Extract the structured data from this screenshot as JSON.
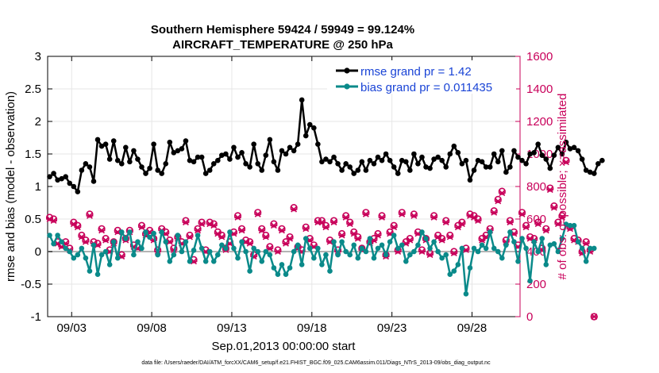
{
  "chart_data": {
    "type": "line",
    "title": "Southern Hemisphere 59424 / 59949 = 99.124%",
    "subtitle": "AIRCRAFT_TEMPERATURE @ 250 hPa",
    "xlabel": "Sep.01,2013 00:00:00 start",
    "ylabel": "rmse and bias (model - observation)",
    "ylabel_right": "# of obs: o=possible; ×=assimilated",
    "footer": "data file: /Users/raeder/DAI/ATM_forcXX/CAM6_setup/f.e21.FHIST_BGC.f09_025.CAM6assim.011/Diags_NTrS_2013-09/obs_diag_output.nc",
    "xlim": [
      1.5,
      31
    ],
    "ylim": [
      -1,
      3
    ],
    "ylim_right": [
      0,
      1600
    ],
    "xticks": [
      3,
      8,
      13,
      18,
      23,
      28
    ],
    "xtick_labels": [
      "09/03",
      "09/08",
      "09/13",
      "09/18",
      "09/23",
      "09/28"
    ],
    "yticks": [
      -1,
      -0.5,
      0,
      0.5,
      1,
      1.5,
      2,
      2.5,
      3
    ],
    "ytick_labels": [
      "-1",
      "-0.5",
      "0",
      "0.5",
      "1",
      "1.5",
      "2",
      "2.5",
      "3"
    ],
    "yticks_right": [
      0,
      200,
      400,
      600,
      800,
      1000,
      1200,
      1400,
      1600
    ],
    "ytick_labels_right": [
      "0",
      "200",
      "400",
      "600",
      "800",
      "1000",
      "1200",
      "1400",
      "1600"
    ],
    "legend_position": "top-right",
    "grid": true,
    "x_start": 1.625,
    "x_step": 0.25,
    "series": [
      {
        "name": "rmse grand pr = 1.42",
        "color": "#000000",
        "axis": "left",
        "values": [
          1.15,
          1.2,
          1.1,
          1.12,
          1.15,
          1.05,
          1.0,
          0.92,
          1.25,
          1.35,
          1.3,
          1.08,
          1.72,
          1.62,
          1.65,
          1.42,
          1.7,
          1.4,
          1.35,
          1.6,
          1.38,
          1.55,
          1.42,
          1.3,
          1.2,
          1.28,
          1.65,
          1.25,
          1.2,
          1.35,
          1.68,
          1.52,
          1.55,
          1.58,
          1.7,
          1.4,
          1.38,
          1.45,
          1.45,
          1.2,
          1.25,
          1.35,
          1.4,
          1.48,
          1.5,
          1.42,
          1.6,
          1.45,
          1.52,
          1.35,
          1.3,
          1.65,
          1.35,
          1.25,
          1.48,
          1.72,
          1.38,
          1.25,
          1.55,
          1.5,
          1.6,
          1.55,
          1.65,
          2.33,
          1.78,
          1.95,
          1.9,
          1.65,
          1.38,
          1.42,
          1.38,
          1.45,
          1.35,
          1.25,
          1.35,
          1.3,
          1.2,
          1.25,
          1.38,
          1.25,
          1.4,
          1.35,
          1.45,
          1.4,
          1.5,
          1.4,
          1.3,
          1.2,
          1.4,
          1.38,
          1.25,
          1.5,
          1.35,
          1.45,
          1.3,
          1.28,
          1.42,
          1.45,
          1.4,
          1.3,
          1.5,
          1.62,
          1.52,
          1.35,
          1.4,
          1.1,
          1.25,
          1.4,
          1.38,
          1.3,
          1.3,
          1.5,
          1.38,
          1.55,
          1.22,
          1.3,
          1.55,
          1.45,
          1.4,
          1.35,
          1.5,
          1.52,
          1.65,
          1.48,
          1.42,
          1.28,
          1.48,
          1.6,
          1.5,
          1.68,
          1.58,
          1.6,
          1.55,
          1.42,
          1.25,
          1.22,
          1.2,
          1.35,
          1.4
        ]
      },
      {
        "name": "bias grand pr = 0.011435",
        "color": "#0a8a8a",
        "axis": "left",
        "values": [
          0.25,
          0.12,
          0.25,
          0.15,
          0.05,
          0.0,
          -0.1,
          -0.05,
          0.05,
          -0.1,
          -0.3,
          0.1,
          -0.35,
          -0.05,
          0.0,
          -0.2,
          0.15,
          -0.1,
          0.3,
          0.2,
          0.3,
          -0.05,
          0.15,
          0.05,
          0.3,
          0.22,
          0.28,
          -0.05,
          0.3,
          0.15,
          -0.15,
          -0.05,
          0.25,
          0.0,
          0.15,
          -0.15,
          0.02,
          0.25,
          0.05,
          -0.15,
          0.0,
          -0.15,
          -0.05,
          0.1,
          0.05,
          0.3,
          0.05,
          -0.1,
          0.15,
          0.0,
          -0.3,
          0.05,
          0.0,
          -0.15,
          0.0,
          -0.05,
          -0.25,
          -0.35,
          -0.2,
          -0.35,
          -0.25,
          0.0,
          0.1,
          -0.2,
          0.2,
          0.05,
          -0.1,
          0.05,
          -0.2,
          -0.05,
          -0.3,
          0.15,
          -0.05,
          0.15,
          0.0,
          -0.05,
          0.1,
          -0.1,
          0.05,
          0.0,
          0.2,
          -0.1,
          0.05,
          0.1,
          -0.05,
          0.15,
          0.25,
          0.05,
          0.1,
          -0.15,
          -0.05,
          0.0,
          0.1,
          0.3,
          0.2,
          0.05,
          0.15,
          0.0,
          -0.1,
          -0.05,
          -0.35,
          -0.3,
          -0.2,
          0.05,
          -0.65,
          -0.25,
          0.05,
          0.0,
          0.1,
          0.05,
          0.3,
          0.05,
          0.0,
          -0.1,
          0.1,
          0.3,
          0.15,
          -0.15,
          0.2,
          0.05,
          -0.45,
          0.15,
          0.0,
          0.2,
          -0.2,
          0.1,
          0.12,
          0.0,
          0.2,
          0.42,
          0.4,
          0.4,
          0.15,
          0.05,
          -0.15,
          0.05,
          0.05
        ]
      }
    ],
    "obs_series": [
      {
        "name": "possible",
        "marker": "o",
        "color": "#c8005a",
        "axis": "right",
        "values": [
          610,
          600,
          460,
          440,
          460,
          420,
          580,
          560,
          500,
          470,
          630,
          460,
          450,
          540,
          480,
          410,
          460,
          530,
          380,
          480,
          530,
          440,
          430,
          560,
          510,
          530,
          480,
          410,
          540,
          520,
          470,
          420,
          490,
          460,
          590,
          500,
          350,
          540,
          580,
          410,
          580,
          570,
          520,
          500,
          420,
          460,
          520,
          620,
          540,
          470,
          460,
          380,
          640,
          540,
          500,
          430,
          570,
          410,
          540,
          460,
          490,
          670,
          430,
          410,
          550,
          480,
          440,
          590,
          590,
          560,
          470,
          590,
          410,
          510,
          620,
          580,
          520,
          490,
          420,
          640,
          460,
          480,
          510,
          620,
          380,
          520,
          560,
          410,
          640,
          460,
          480,
          630,
          520,
          410,
          480,
          390,
          620,
          500,
          480,
          590,
          500,
          400,
          560,
          580,
          420,
          630,
          620,
          600,
          480,
          500,
          540,
          650,
          720,
          770,
          470,
          590,
          520,
          440,
          640,
          560,
          490,
          480,
          580,
          420,
          540,
          790,
          680,
          580,
          620,
          960,
          550,
          480,
          470,
          400,
          460,
          410,
          0
        ]
      },
      {
        "name": "assimilated",
        "marker": "x",
        "color": "#c8005a",
        "axis": "right",
        "values": [
          600,
          590,
          450,
          430,
          450,
          410,
          570,
          550,
          490,
          460,
          620,
          450,
          440,
          530,
          470,
          400,
          450,
          520,
          370,
          470,
          520,
          430,
          420,
          550,
          500,
          520,
          470,
          400,
          530,
          510,
          460,
          410,
          480,
          450,
          580,
          490,
          340,
          530,
          570,
          400,
          570,
          560,
          510,
          490,
          410,
          450,
          510,
          610,
          530,
          460,
          450,
          370,
          630,
          530,
          490,
          420,
          560,
          400,
          530,
          450,
          480,
          660,
          420,
          400,
          540,
          470,
          430,
          580,
          580,
          550,
          460,
          580,
          400,
          500,
          610,
          570,
          510,
          480,
          410,
          630,
          450,
          470,
          500,
          610,
          370,
          510,
          550,
          400,
          630,
          450,
          470,
          620,
          510,
          400,
          470,
          380,
          610,
          490,
          470,
          580,
          490,
          390,
          550,
          570,
          410,
          620,
          610,
          590,
          470,
          490,
          530,
          640,
          710,
          760,
          460,
          580,
          510,
          430,
          630,
          550,
          480,
          470,
          570,
          410,
          530,
          780,
          670,
          570,
          610,
          950,
          540,
          470,
          460,
          390,
          450,
          400,
          0
        ]
      }
    ],
    "zero_line_color": "#b4b4b4"
  }
}
